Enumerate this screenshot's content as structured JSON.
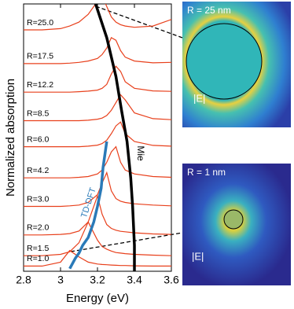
{
  "chart_data": {
    "type": "line",
    "x_label": "Energy (eV)",
    "y_label": "Normalized absorption",
    "xlim": [
      2.8,
      3.6
    ],
    "xticks": [
      2.8,
      3,
      3.2,
      3.4,
      3.6
    ],
    "ylim": [
      0,
      10.3
    ],
    "x": [
      2.8,
      2.9,
      3.0,
      3.05,
      3.1,
      3.15,
      3.2,
      3.225,
      3.25,
      3.275,
      3.3,
      3.325,
      3.35,
      3.4,
      3.5,
      3.6
    ],
    "series": [
      {
        "name": "R=1.0",
        "color": "#e8401c",
        "values": [
          0.2,
          0.2,
          0.35,
          0.8,
          0.55,
          0.35,
          0.28,
          0.26,
          0.25,
          0.24,
          0.23,
          0.22,
          0.22,
          0.21,
          0.2,
          0.2
        ]
      },
      {
        "name": "R=1.5",
        "color": "#e8401c",
        "values": [
          0.6,
          0.6,
          0.65,
          0.75,
          1.1,
          1.9,
          1.2,
          0.95,
          0.85,
          0.78,
          0.72,
          0.7,
          0.68,
          0.65,
          0.62,
          0.6
        ]
      },
      {
        "name": "R=2.0",
        "color": "#e8401c",
        "values": [
          1.4,
          1.4,
          1.42,
          1.45,
          1.55,
          1.9,
          2.9,
          2.2,
          1.8,
          1.65,
          1.58,
          1.54,
          1.52,
          1.48,
          1.44,
          1.42
        ]
      },
      {
        "name": "R=3.0",
        "color": "#e8401c",
        "values": [
          2.5,
          2.5,
          2.5,
          2.52,
          2.55,
          2.65,
          2.95,
          3.4,
          3.8,
          3.1,
          2.8,
          2.7,
          2.65,
          2.6,
          2.55,
          2.52
        ]
      },
      {
        "name": "R=4.2",
        "color": "#e8401c",
        "values": [
          3.6,
          3.6,
          3.6,
          3.6,
          3.62,
          3.65,
          3.75,
          3.9,
          4.2,
          4.6,
          4.8,
          4.2,
          3.9,
          3.75,
          3.65,
          3.62
        ]
      },
      {
        "name": "R=6.0",
        "color": "#e8401c",
        "values": [
          4.8,
          4.8,
          4.8,
          4.8,
          4.8,
          4.82,
          4.86,
          4.92,
          5.05,
          5.3,
          5.6,
          5.75,
          5.3,
          5.0,
          4.85,
          4.82
        ]
      },
      {
        "name": "R=8.5",
        "color": "#e8401c",
        "values": [
          5.8,
          5.8,
          5.8,
          5.8,
          5.8,
          5.82,
          5.86,
          5.9,
          6.0,
          6.2,
          6.5,
          6.8,
          6.6,
          6.1,
          5.88,
          5.84
        ]
      },
      {
        "name": "R=12.2",
        "color": "#e8401c",
        "values": [
          6.9,
          6.9,
          6.9,
          6.9,
          6.92,
          6.94,
          6.98,
          7.05,
          7.2,
          7.6,
          7.9,
          7.7,
          7.3,
          7.05,
          6.95,
          6.93
        ]
      },
      {
        "name": "R=17.5",
        "color": "#e8401c",
        "values": [
          8.0,
          8.0,
          8.0,
          8.02,
          8.05,
          8.1,
          8.2,
          8.35,
          8.6,
          9.0,
          8.9,
          8.5,
          8.25,
          8.1,
          8.03,
          8.05
        ]
      },
      {
        "name": "R=25.0",
        "color": "#e8401c",
        "values": [
          9.3,
          9.3,
          9.35,
          9.45,
          9.6,
          9.9,
          10.4,
          10.6,
          10.2,
          9.8,
          9.6,
          9.5,
          9.45,
          9.4,
          9.45,
          9.7
        ]
      }
    ],
    "curves": [
      {
        "name": "Mie",
        "color": "#000000",
        "x": [
          3.19,
          3.25,
          3.3,
          3.33,
          3.36,
          3.38,
          3.39,
          3.4,
          3.4
        ],
        "values": [
          10.3,
          9.0,
          7.5,
          6.2,
          5.0,
          3.6,
          2.5,
          1.0,
          0
        ]
      },
      {
        "name": "TD-DFT",
        "color": "#2a7ab8",
        "x": [
          3.05,
          3.08,
          3.1,
          3.12,
          3.15,
          3.18,
          3.2,
          3.22,
          3.23,
          3.25
        ],
        "values": [
          0.1,
          0.5,
          0.7,
          1.0,
          1.3,
          1.9,
          2.5,
          3.2,
          4.0,
          5.0
        ]
      }
    ],
    "insets": [
      {
        "title": "R = 25 nm",
        "label": "|E|"
      },
      {
        "title": "R = 1 nm",
        "label": "|E|"
      }
    ]
  }
}
